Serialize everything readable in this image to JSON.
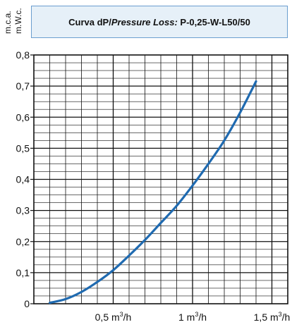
{
  "title_box": {
    "prefix": "Curva dP/",
    "italic": "Pressure Loss:",
    "suffix": " P-0,25-W-L50/50"
  },
  "y_unit_labels": [
    "m.c.a.",
    "m.W.c."
  ],
  "colors": {
    "curve": "#1f6ab0",
    "grid": "#111111",
    "title_bg": "#e6f0f8",
    "title_border": "#6a9ecf"
  },
  "chart_data": {
    "type": "line",
    "title": "Curva dP/Pressure Loss: P-0,25-W-L50/50",
    "xlabel": "",
    "ylabel": "m.c.a. / m.W.c.",
    "xlim": [
      0,
      1.6
    ],
    "ylim": [
      0,
      0.8
    ],
    "x_ticks": [
      0.5,
      1.0,
      1.5
    ],
    "x_tick_labels": [
      "0,5 m³/h",
      "1 m³/h",
      "1,5 m³/h"
    ],
    "y_ticks": [
      0,
      0.1,
      0.2,
      0.3,
      0.4,
      0.5,
      0.6,
      0.7,
      0.8
    ],
    "y_tick_labels": [
      "0",
      "0,1",
      "0,2",
      "0,3",
      "0,4",
      "0,5",
      "0,6",
      "0,7",
      "0,8"
    ],
    "grid": true,
    "series": [
      {
        "x": [
          0.1,
          0.2,
          0.3,
          0.4,
          0.5,
          0.6,
          0.7,
          0.8,
          0.9,
          1.0,
          1.1,
          1.2,
          1.3,
          1.4
        ],
        "y": [
          0.003,
          0.015,
          0.038,
          0.07,
          0.108,
          0.155,
          0.205,
          0.26,
          0.315,
          0.38,
          0.45,
          0.525,
          0.615,
          0.715
        ]
      }
    ]
  }
}
